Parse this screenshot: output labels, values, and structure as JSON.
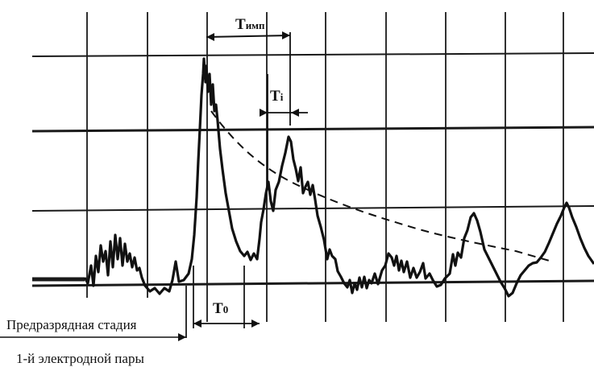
{
  "labels": {
    "t_imp_main": "T",
    "t_imp_sub": "имп",
    "t_i_main": "T",
    "t_i_sub": "i",
    "t_0_main": "T",
    "t_0_sub": "0",
    "prestage_line1": "Предразрядная стадия",
    "prestage_line2": "1-й электродной пары"
  },
  "colors": {
    "ink": "#111111",
    "grid": "#1a1a1a",
    "background": "#ffffff"
  }
}
